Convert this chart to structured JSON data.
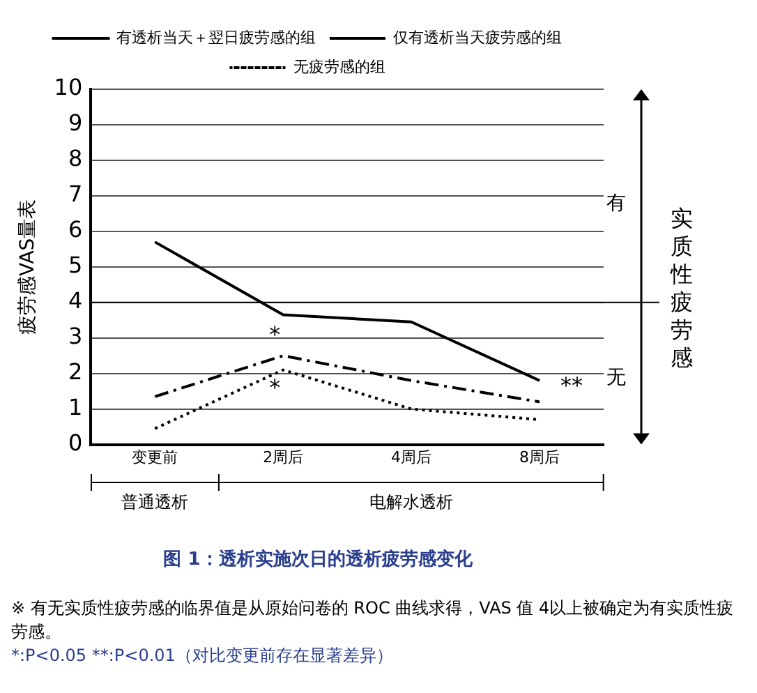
{
  "chart_data": {
    "type": "line",
    "title": "图 1：透析实施次日的透析疲劳感变化",
    "ylabel": "疲劳感VAS量表",
    "y2label": "实质性疲劳感",
    "categories": [
      "变更前",
      "2周后",
      "4周后",
      "8周后"
    ],
    "series": [
      {
        "name": "有透析当天＋翌日疲劳感的组",
        "color": "#000000",
        "line_style": "solid",
        "values": [
          5.7,
          3.65,
          3.45,
          1.8
        ]
      },
      {
        "name": "仅有透析当天疲劳感的组",
        "color": "#000000",
        "line_style": "dashdot",
        "values": [
          1.35,
          2.5,
          1.8,
          1.2
        ]
      },
      {
        "name": "无疲劳感的组",
        "color": "#000000",
        "line_style": "dotted",
        "values": [
          0.45,
          2.1,
          1.0,
          0.7
        ]
      }
    ],
    "ylim": [
      0,
      10
    ],
    "yticks": [
      0,
      1,
      2,
      3,
      4,
      5,
      6,
      7,
      8,
      9,
      10
    ],
    "grid": "y",
    "legend": "top",
    "marker": "none",
    "ref_lines": [
      {
        "axis": "y",
        "value": 4
      }
    ],
    "annotations": [
      "有",
      "无",
      "普通透析",
      "电解水透析",
      {
        "text": "*",
        "x": "2周后",
        "y": 2.5
      },
      {
        "text": "*",
        "x": "2周后",
        "y": 2.1
      },
      {
        "text": "**",
        "x": "8周后",
        "y": 1.8
      },
      "※ 有无实质性疲劳感的临界值是从原始问卷的 ROC 曲线求得，VAS 值 4以上被确定为有实质性疲劳感。",
      "*:P<0.05  **:P<0.01（对比变更前存在显著差异）"
    ]
  }
}
